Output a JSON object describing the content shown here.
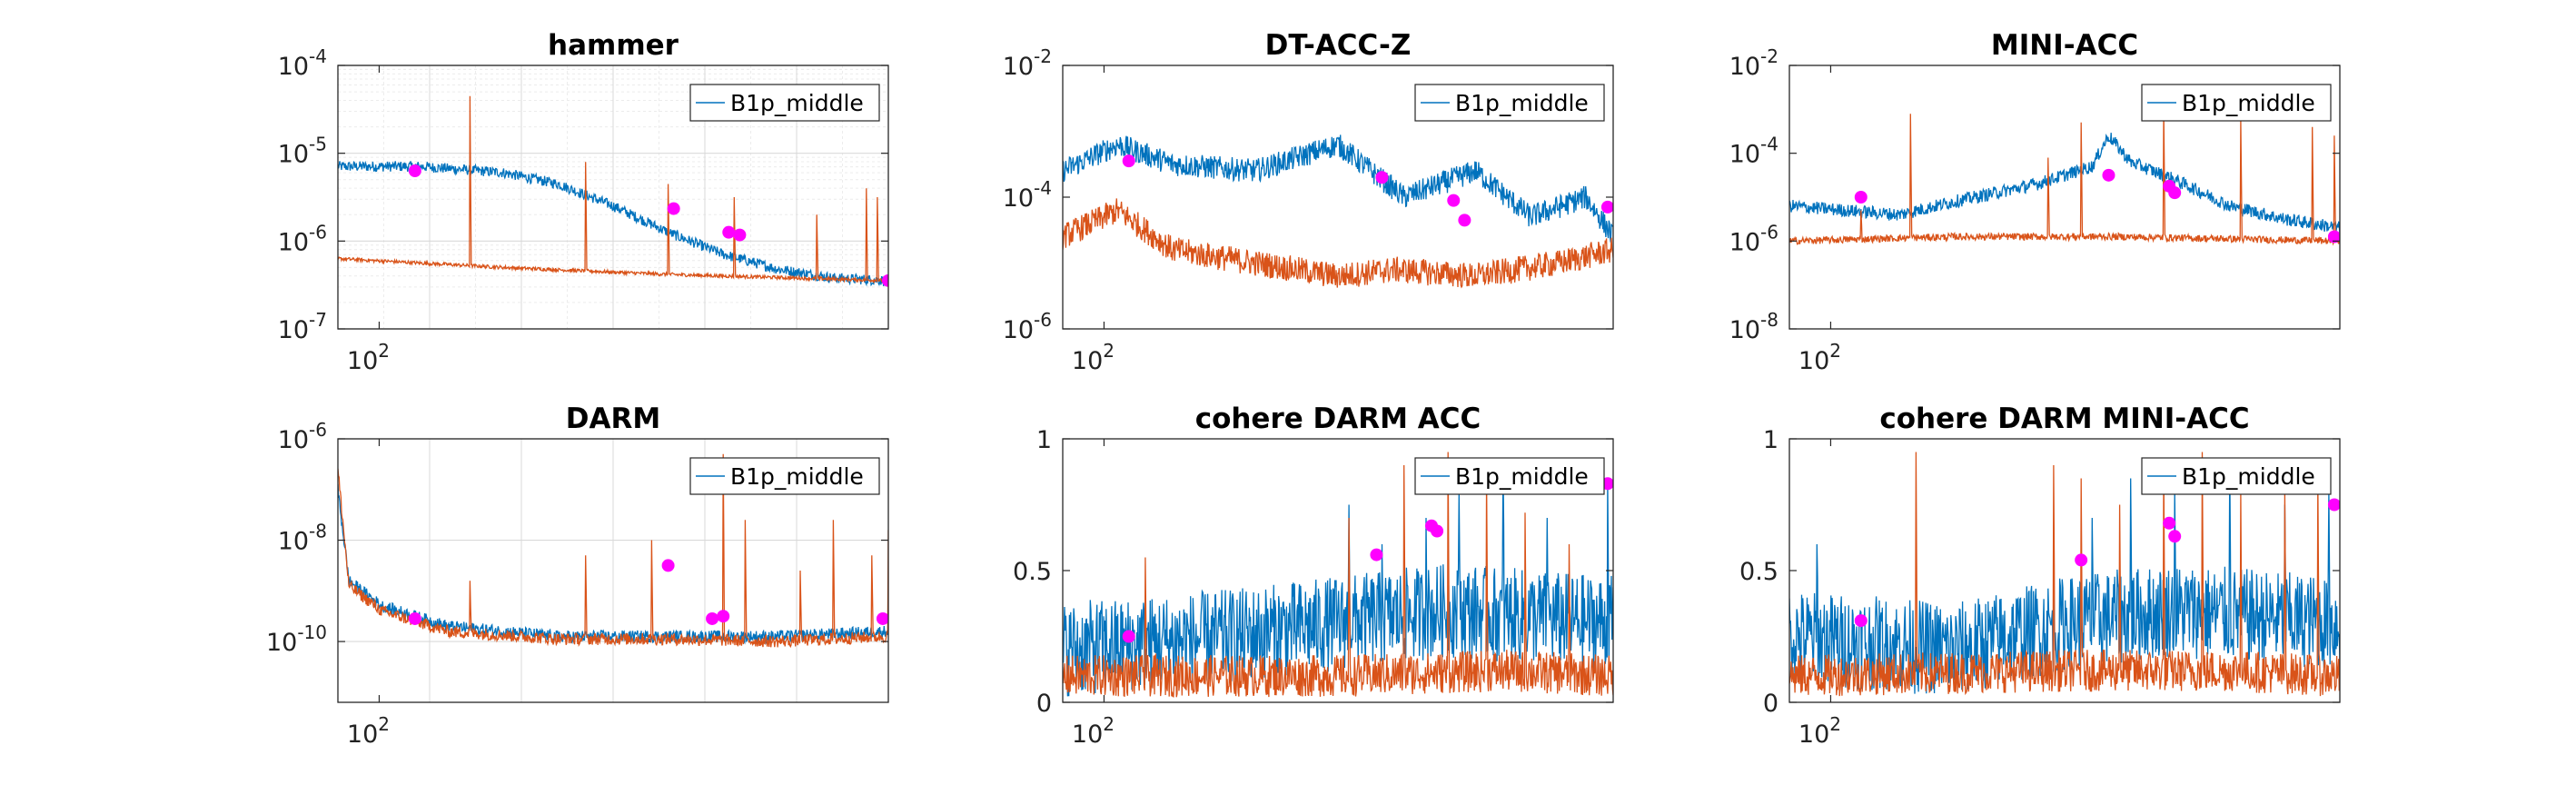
{
  "figure": {
    "background": "#ffffff"
  },
  "chart_data": [
    {
      "id": "hammer",
      "type": "line",
      "title": "hammer",
      "yscale": "log",
      "xscale": "log",
      "ytick_base": "10",
      "yticks": [
        {
          "v": -7,
          "label": "-7"
        },
        {
          "v": -6,
          "label": "-6"
        },
        {
          "v": -5,
          "label": "-5"
        },
        {
          "v": -4,
          "label": "-4"
        }
      ],
      "ylim_exp": [
        -7,
        -4
      ],
      "xtick_base": "10",
      "xtick_exp": "2",
      "xtick_value": 100,
      "grid": "on-minor",
      "legend": {
        "entries": [
          "B1p_middle"
        ],
        "placement": "top-right"
      },
      "series": [
        {
          "name": "B1p_middle",
          "color": "#0072BD",
          "knots": [
            [
              0,
              -5.15
            ],
            [
              0.15,
              -5.15
            ],
            [
              0.3,
              -5.22
            ],
            [
              0.4,
              -5.35
            ],
            [
              0.5,
              -5.6
            ],
            [
              0.6,
              -5.9
            ],
            [
              0.7,
              -6.15
            ],
            [
              0.8,
              -6.32
            ],
            [
              0.9,
              -6.42
            ],
            [
              1,
              -6.45
            ]
          ],
          "noise": 0.06,
          "spikes": []
        },
        {
          "color": "#D95319",
          "knots": [
            [
              0,
              -6.2
            ],
            [
              0.3,
              -6.3
            ],
            [
              0.6,
              -6.38
            ],
            [
              1,
              -6.45
            ]
          ],
          "noise": 0.02,
          "spikes": [
            [
              0.24,
              -4.35
            ],
            [
              0.45,
              -5.1
            ],
            [
              0.6,
              -5.35
            ],
            [
              0.72,
              -5.5
            ],
            [
              0.87,
              -5.7
            ],
            [
              0.96,
              -5.4
            ],
            [
              0.98,
              -5.5
            ]
          ]
        }
      ],
      "markers": [
        [
          0.14,
          -5.2
        ],
        [
          0.61,
          -5.63
        ],
        [
          0.71,
          -5.9
        ],
        [
          0.73,
          -5.93
        ],
        [
          1.0,
          -6.45
        ]
      ]
    },
    {
      "id": "dt-acc-z",
      "type": "line",
      "title": "DT-ACC-Z",
      "yscale": "log",
      "xscale": "log",
      "ytick_base": "10",
      "yticks": [
        {
          "v": -6,
          "label": "-6"
        },
        {
          "v": -4,
          "label": "-4"
        },
        {
          "v": -2,
          "label": "-2"
        }
      ],
      "ylim_exp": [
        -6,
        -2
      ],
      "xtick_base": "10",
      "xtick_exp": "2",
      "xtick_value": 100,
      "grid": "off",
      "legend": {
        "entries": [
          "B1p_middle"
        ],
        "placement": "top-right"
      },
      "series": [
        {
          "name": "B1p_middle",
          "color": "#0072BD",
          "knots": [
            [
              0,
              -3.6
            ],
            [
              0.1,
              -3.2
            ],
            [
              0.2,
              -3.5
            ],
            [
              0.35,
              -3.6
            ],
            [
              0.5,
              -3.2
            ],
            [
              0.62,
              -4.0
            ],
            [
              0.75,
              -3.6
            ],
            [
              0.85,
              -4.3
            ],
            [
              0.95,
              -4.0
            ],
            [
              1,
              -4.6
            ]
          ],
          "noise": 0.18,
          "spikes": []
        },
        {
          "color": "#D95319",
          "knots": [
            [
              0,
              -4.6
            ],
            [
              0.1,
              -4.2
            ],
            [
              0.2,
              -4.8
            ],
            [
              0.35,
              -5.0
            ],
            [
              0.5,
              -5.2
            ],
            [
              0.6,
              -5.1
            ],
            [
              0.75,
              -5.2
            ],
            [
              0.9,
              -5.0
            ],
            [
              1,
              -4.8
            ]
          ],
          "noise": 0.2,
          "spikes": []
        }
      ],
      "markers": [
        [
          0.12,
          -3.45
        ],
        [
          0.58,
          -3.7
        ],
        [
          0.71,
          -4.05
        ],
        [
          0.73,
          -4.35
        ],
        [
          0.99,
          -4.15
        ]
      ]
    },
    {
      "id": "mini-acc",
      "type": "line",
      "title": "MINI-ACC",
      "yscale": "log",
      "xscale": "log",
      "ytick_base": "10",
      "yticks": [
        {
          "v": -8,
          "label": "-8"
        },
        {
          "v": -6,
          "label": "-6"
        },
        {
          "v": -4,
          "label": "-4"
        },
        {
          "v": -2,
          "label": "-2"
        }
      ],
      "ylim_exp": [
        -8,
        -2
      ],
      "xtick_base": "10",
      "xtick_exp": "2",
      "xtick_value": 100,
      "grid": "off",
      "legend": {
        "entries": [
          "B1p_middle"
        ],
        "placement": "top-right"
      },
      "series": [
        {
          "name": "B1p_middle",
          "color": "#0072BD",
          "knots": [
            [
              0,
              -5.2
            ],
            [
              0.1,
              -5.3
            ],
            [
              0.2,
              -5.4
            ],
            [
              0.3,
              -5.1
            ],
            [
              0.45,
              -4.7
            ],
            [
              0.55,
              -4.3
            ],
            [
              0.58,
              -3.6
            ],
            [
              0.62,
              -4.2
            ],
            [
              0.7,
              -4.6
            ],
            [
              0.8,
              -5.2
            ],
            [
              0.9,
              -5.5
            ],
            [
              1,
              -5.7
            ]
          ],
          "noise": 0.15,
          "spikes": []
        },
        {
          "color": "#D95319",
          "knots": [
            [
              0,
              -6.0
            ],
            [
              0.3,
              -5.9
            ],
            [
              0.6,
              -5.9
            ],
            [
              1,
              -6.0
            ]
          ],
          "noise": 0.08,
          "spikes": [
            [
              0.13,
              -5.3
            ],
            [
              0.22,
              -3.1
            ],
            [
              0.47,
              -4.1
            ],
            [
              0.53,
              -3.3
            ],
            [
              0.68,
              -3.0
            ],
            [
              0.82,
              -3.2
            ],
            [
              0.95,
              -3.4
            ],
            [
              0.99,
              -3.6
            ]
          ]
        }
      ],
      "markers": [
        [
          0.13,
          -5.0
        ],
        [
          0.58,
          -4.5
        ],
        [
          0.69,
          -4.75
        ],
        [
          0.7,
          -4.9
        ],
        [
          0.99,
          -5.9
        ]
      ]
    },
    {
      "id": "darm",
      "type": "line",
      "title": "DARM",
      "yscale": "log",
      "xscale": "log",
      "ytick_base": "10",
      "yticks": [
        {
          "v": -10,
          "label": "-10"
        },
        {
          "v": -8,
          "label": "-8"
        },
        {
          "v": -6,
          "label": "-6"
        }
      ],
      "ylim_exp": [
        -11.2,
        -6
      ],
      "xtick_base": "10",
      "xtick_exp": "2",
      "xtick_value": 100,
      "grid": "on",
      "legend": {
        "entries": [
          "B1p_middle"
        ],
        "placement": "top-right"
      },
      "series": [
        {
          "name": "B1p_middle",
          "color": "#0072BD",
          "knots": [
            [
              0,
              -7.0
            ],
            [
              0.02,
              -8.8
            ],
            [
              0.08,
              -9.3
            ],
            [
              0.2,
              -9.7
            ],
            [
              0.4,
              -9.9
            ],
            [
              0.6,
              -9.9
            ],
            [
              0.8,
              -9.9
            ],
            [
              1,
              -9.8
            ]
          ],
          "noise": 0.12,
          "spikes": []
        },
        {
          "color": "#D95319",
          "knots": [
            [
              0,
              -6.6
            ],
            [
              0.02,
              -8.9
            ],
            [
              0.08,
              -9.4
            ],
            [
              0.2,
              -9.8
            ],
            [
              0.4,
              -9.95
            ],
            [
              0.6,
              -9.95
            ],
            [
              0.8,
              -10.0
            ],
            [
              1,
              -9.9
            ]
          ],
          "noise": 0.12,
          "spikes": [
            [
              0.24,
              -8.8
            ],
            [
              0.45,
              -8.3
            ],
            [
              0.57,
              -8.0
            ],
            [
              0.7,
              -6.3
            ],
            [
              0.74,
              -7.6
            ],
            [
              0.84,
              -8.6
            ],
            [
              0.9,
              -7.6
            ],
            [
              0.97,
              -8.3
            ],
            [
              1.0,
              -7.8
            ]
          ]
        }
      ],
      "markers": [
        [
          0.14,
          -9.55
        ],
        [
          0.6,
          -8.5
        ],
        [
          0.68,
          -9.55
        ],
        [
          0.7,
          -9.5
        ],
        [
          0.99,
          -9.55
        ]
      ]
    },
    {
      "id": "cohere-darm-acc",
      "type": "line",
      "title": "cohere DARM ACC",
      "yscale": "linear",
      "xscale": "log",
      "yticks": [
        {
          "v": 0,
          "label": "0"
        },
        {
          "v": 0.5,
          "label": "0.5"
        },
        {
          "v": 1,
          "label": "1"
        }
      ],
      "ylim": [
        0,
        1
      ],
      "xtick_base": "10",
      "xtick_exp": "2",
      "xtick_value": 100,
      "grid": "off",
      "legend": {
        "entries": [
          "B1p_middle"
        ],
        "placement": "top-right"
      },
      "series": [
        {
          "name": "B1p_middle",
          "color": "#0072BD",
          "knots": [
            [
              0,
              0.2
            ],
            [
              0.3,
              0.25
            ],
            [
              0.5,
              0.3
            ],
            [
              0.7,
              0.35
            ],
            [
              1,
              0.3
            ]
          ],
          "noise": 0.18,
          "spikes": [
            [
              0.52,
              0.75
            ],
            [
              0.58,
              0.6
            ],
            [
              0.66,
              0.7
            ],
            [
              0.72,
              0.8
            ],
            [
              0.8,
              0.9
            ],
            [
              0.88,
              0.7
            ],
            [
              0.99,
              0.85
            ]
          ]
        },
        {
          "color": "#D95319",
          "knots": [
            [
              0,
              0.1
            ],
            [
              0.5,
              0.1
            ],
            [
              0.8,
              0.12
            ],
            [
              1,
              0.1
            ]
          ],
          "noise": 0.08,
          "spikes": [
            [
              0.15,
              0.55
            ],
            [
              0.52,
              0.7
            ],
            [
              0.62,
              0.9
            ],
            [
              0.7,
              0.95
            ],
            [
              0.77,
              0.85
            ],
            [
              0.84,
              0.72
            ],
            [
              0.92,
              0.6
            ]
          ]
        }
      ],
      "markers": [
        [
          0.12,
          0.25
        ],
        [
          0.57,
          0.56
        ],
        [
          0.67,
          0.67
        ],
        [
          0.68,
          0.65
        ],
        [
          0.99,
          0.83
        ]
      ]
    },
    {
      "id": "cohere-darm-mini-acc",
      "type": "line",
      "title": "cohere DARM MINI-ACC",
      "yscale": "linear",
      "xscale": "log",
      "yticks": [
        {
          "v": 0,
          "label": "0"
        },
        {
          "v": 0.5,
          "label": "0.5"
        },
        {
          "v": 1,
          "label": "1"
        }
      ],
      "ylim": [
        0,
        1
      ],
      "xtick_base": "10",
      "xtick_exp": "2",
      "xtick_value": 100,
      "grid": "off",
      "legend": {
        "entries": [
          "B1p_middle"
        ],
        "placement": "top-right"
      },
      "series": [
        {
          "name": "B1p_middle",
          "color": "#0072BD",
          "knots": [
            [
              0,
              0.25
            ],
            [
              0.3,
              0.2
            ],
            [
              0.5,
              0.3
            ],
            [
              0.7,
              0.35
            ],
            [
              1,
              0.3
            ]
          ],
          "noise": 0.18,
          "spikes": [
            [
              0.05,
              0.6
            ],
            [
              0.55,
              0.7
            ],
            [
              0.62,
              0.85
            ],
            [
              0.7,
              0.8
            ],
            [
              0.8,
              0.9
            ],
            [
              0.9,
              0.75
            ],
            [
              0.98,
              0.8
            ]
          ]
        },
        {
          "color": "#D95319",
          "knots": [
            [
              0,
              0.1
            ],
            [
              0.5,
              0.12
            ],
            [
              0.8,
              0.12
            ],
            [
              1,
              0.1
            ]
          ],
          "noise": 0.08,
          "spikes": [
            [
              0.23,
              0.95
            ],
            [
              0.48,
              0.9
            ],
            [
              0.53,
              0.85
            ],
            [
              0.6,
              0.75
            ],
            [
              0.68,
              0.9
            ],
            [
              0.75,
              0.95
            ],
            [
              0.82,
              0.8
            ],
            [
              0.9,
              0.8
            ],
            [
              0.96,
              0.85
            ]
          ]
        }
      ],
      "markers": [
        [
          0.13,
          0.31
        ],
        [
          0.53,
          0.54
        ],
        [
          0.69,
          0.68
        ],
        [
          0.7,
          0.63
        ],
        [
          0.99,
          0.75
        ]
      ]
    }
  ],
  "colors": {
    "marker": "#FF00FF",
    "grid": "#d9d9d9",
    "axis": "#262626"
  }
}
